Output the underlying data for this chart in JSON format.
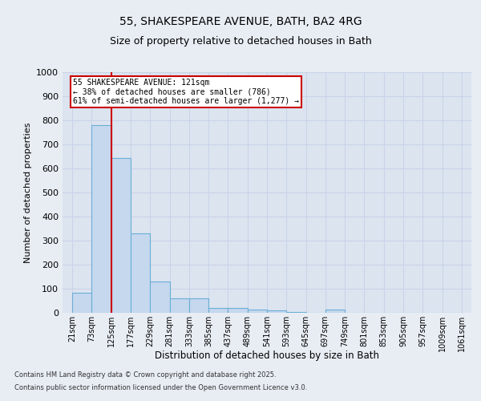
{
  "title_line1": "55, SHAKESPEARE AVENUE, BATH, BA2 4RG",
  "title_line2": "Size of property relative to detached houses in Bath",
  "xlabel": "Distribution of detached houses by size in Bath",
  "ylabel": "Number of detached properties",
  "bar_color": "#c5d8ee",
  "bar_edge_color": "#6baed6",
  "vline_color": "#cc0000",
  "vline_x": 125,
  "annotation_text": "55 SHAKESPEARE AVENUE: 121sqm\n← 38% of detached houses are smaller (786)\n61% of semi-detached houses are larger (1,277) →",
  "annotation_box_color": "#cc0000",
  "bins": [
    21,
    73,
    125,
    177,
    229,
    281,
    333,
    385,
    437,
    489,
    541,
    593,
    645,
    697,
    749,
    801,
    853,
    905,
    957,
    1009,
    1061
  ],
  "counts": [
    85,
    780,
    645,
    330,
    130,
    60,
    60,
    20,
    20,
    15,
    10,
    5,
    0,
    15,
    0,
    0,
    0,
    0,
    0,
    0
  ],
  "ylim": [
    0,
    1000
  ],
  "yticks": [
    0,
    100,
    200,
    300,
    400,
    500,
    600,
    700,
    800,
    900,
    1000
  ],
  "background_color": "#e8edf4",
  "plot_bg_color": "#dce4f0",
  "footer_line1": "Contains HM Land Registry data © Crown copyright and database right 2025.",
  "footer_line2": "Contains public sector information licensed under the Open Government Licence v3.0.",
  "grid_color": "#c8d4e8"
}
